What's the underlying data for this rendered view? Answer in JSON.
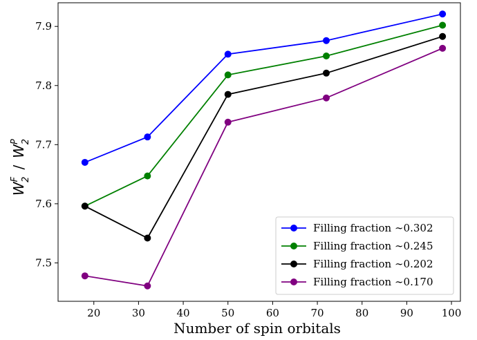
{
  "chart_data": {
    "type": "line",
    "xlabel": "Number of spin orbitals",
    "ylabel_parts": {
      "w1": "W",
      "sup1": "F",
      "sub1": "2",
      "slash": "/",
      "w2": "W",
      "sup2": "P",
      "sub2": "2"
    },
    "xlim": [
      12,
      102
    ],
    "ylim": [
      7.435,
      7.94
    ],
    "xticks": [
      20,
      30,
      40,
      50,
      60,
      70,
      80,
      90,
      100
    ],
    "yticks": [
      7.5,
      7.6,
      7.7,
      7.8,
      7.9
    ],
    "ytick_labels": [
      "7.5",
      "7.6",
      "7.7",
      "7.8",
      "7.9"
    ],
    "x": [
      18,
      32,
      50,
      72,
      98
    ],
    "series": [
      {
        "name": "Filling fraction ∼0.302",
        "color": "#0000ff",
        "values": [
          7.67,
          7.713,
          7.853,
          7.876,
          7.921
        ]
      },
      {
        "name": "Filling fraction ∼0.245",
        "color": "#008000",
        "values": [
          7.596,
          7.647,
          7.818,
          7.85,
          7.902
        ]
      },
      {
        "name": "Filling fraction ∼0.202",
        "color": "#000000",
        "values": [
          7.596,
          7.542,
          7.785,
          7.821,
          7.883
        ]
      },
      {
        "name": "Filling fraction ∼0.170",
        "color": "#800080",
        "values": [
          7.478,
          7.461,
          7.738,
          7.779,
          7.863
        ]
      }
    ],
    "grid": false,
    "legend_position": "lower-right"
  }
}
